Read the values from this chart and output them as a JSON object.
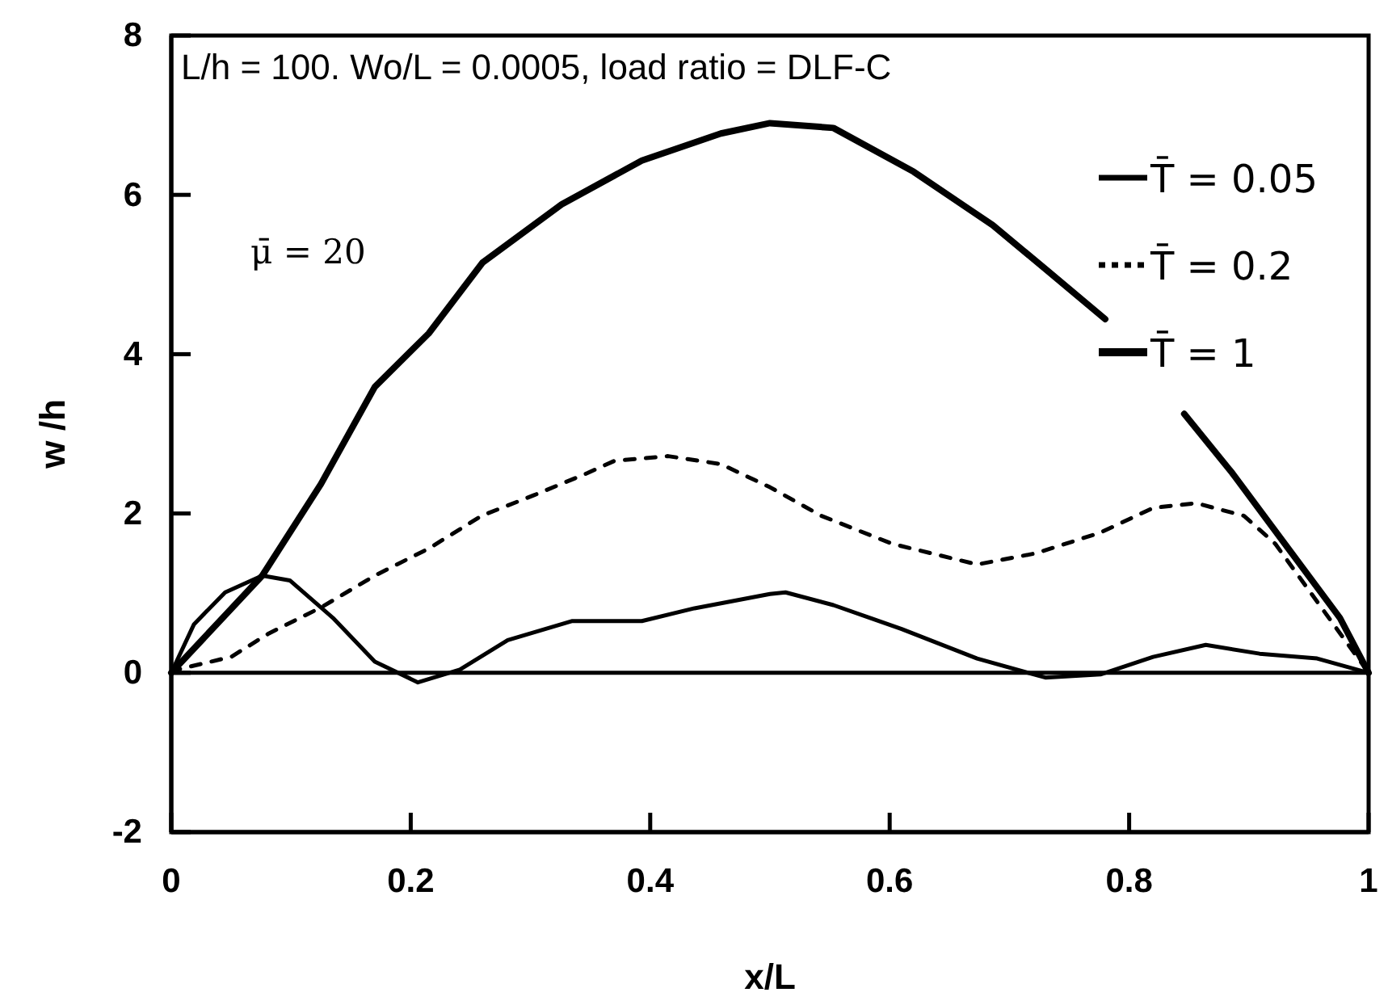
{
  "chart_data": {
    "type": "line",
    "title": "L/h = 100. Wo/L = 0.0005, load ratio = DLF-C",
    "xlabel": "x/L",
    "ylabel": "w /h",
    "annotations": [
      "μ̄ = 20"
    ],
    "xlim": [
      0,
      1
    ],
    "xticks": [
      0,
      0.2,
      0.4,
      0.6,
      0.8,
      1
    ],
    "ylim": [
      -2,
      8
    ],
    "yticks": [
      -2,
      0,
      2,
      4,
      6,
      8
    ],
    "grid": false,
    "legend": "top right",
    "marker": "none",
    "ref_lines": [
      {
        "axis": "y",
        "value": 0
      }
    ],
    "series": [
      {
        "name": "T̄ = 0.05",
        "color": "#000000",
        "line_style": "solid",
        "x": [
          0,
          0.019,
          0.045,
          0.076,
          0.099,
          0.135,
          0.17,
          0.206,
          0.241,
          0.281,
          0.335,
          0.393,
          0.437,
          0.5,
          0.513,
          0.553,
          0.61,
          0.673,
          0.73,
          0.776,
          0.82,
          0.864,
          0.909,
          0.957,
          1
        ],
        "values": [
          0,
          0.61,
          1.01,
          1.22,
          1.16,
          0.69,
          0.14,
          -0.12,
          0.04,
          0.41,
          0.65,
          0.65,
          0.81,
          0.99,
          1.01,
          0.85,
          0.55,
          0.18,
          -0.06,
          -0.02,
          0.2,
          0.35,
          0.24,
          0.18,
          0
        ]
      },
      {
        "name": "T̄ = 0.2",
        "color": "#000000",
        "line_style": "dashed",
        "x": [
          0,
          0.005,
          0.05,
          0.081,
          0.125,
          0.17,
          0.215,
          0.259,
          0.303,
          0.348,
          0.37,
          0.415,
          0.459,
          0.5,
          0.543,
          0.602,
          0.673,
          0.722,
          0.776,
          0.82,
          0.856,
          0.896,
          0.922,
          1
        ],
        "values": [
          0,
          0.04,
          0.2,
          0.49,
          0.82,
          1.22,
          1.56,
          1.97,
          2.23,
          2.51,
          2.66,
          2.72,
          2.62,
          2.33,
          1.97,
          1.62,
          1.36,
          1.5,
          1.76,
          2.07,
          2.13,
          1.97,
          1.62,
          0
        ]
      },
      {
        "name": "T̄ = 1",
        "color": "#000000",
        "line_style": "solid",
        "x": [
          0,
          0.076,
          0.125,
          0.17,
          0.215,
          0.26,
          0.326,
          0.393,
          0.459,
          0.5,
          0.553,
          0.62,
          0.686,
          0.73,
          0.78,
          0.8,
          0.846,
          0.886,
          0.93,
          0.976,
          1
        ],
        "values": [
          0,
          1.22,
          2.37,
          3.59,
          4.26,
          5.15,
          5.88,
          6.43,
          6.77,
          6.9,
          6.84,
          6.29,
          5.62,
          5.07,
          4.44,
          null,
          3.25,
          2.51,
          1.62,
          0.69,
          0
        ]
      }
    ]
  }
}
